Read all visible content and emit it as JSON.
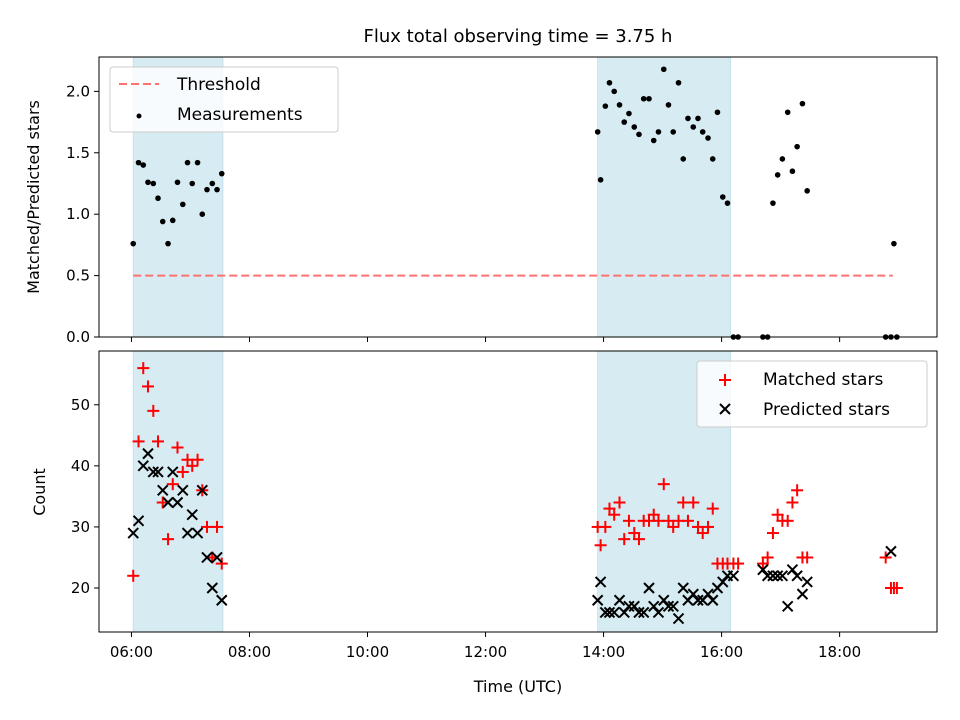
{
  "chart_data": [
    {
      "type": "scatter",
      "title": "Flux total observing time = 3.75 h",
      "xlabel": "",
      "ylabel": "Matched/Predicted stars",
      "xlim": [
        5.45,
        19.65
      ],
      "ylim": [
        0,
        2.28
      ],
      "yticks": [
        0.0,
        0.5,
        1.0,
        1.5,
        2.0
      ],
      "ytick_labels": [
        "0.0",
        "0.5",
        "1.0",
        "1.5",
        "2.0"
      ],
      "legend_position": "top-left",
      "shaded_intervals": [
        [
          6.03,
          7.55
        ],
        [
          13.9,
          16.15
        ]
      ],
      "series": [
        {
          "name": "Threshold",
          "kind": "dashed-line",
          "color": "#ff7070",
          "x": [
            6.03,
            18.9
          ],
          "y": [
            0.5,
            0.5
          ]
        },
        {
          "name": "Measurements",
          "kind": "points",
          "color": "#000000",
          "x": [
            6.03,
            6.12,
            6.2,
            6.28,
            6.37,
            6.45,
            6.53,
            6.62,
            6.7,
            6.78,
            6.87,
            6.95,
            7.03,
            7.12,
            7.2,
            7.28,
            7.37,
            7.45,
            7.53,
            13.9,
            13.95,
            14.03,
            14.1,
            14.18,
            14.27,
            14.35,
            14.43,
            14.52,
            14.6,
            14.68,
            14.77,
            14.85,
            14.93,
            15.02,
            15.1,
            15.18,
            15.27,
            15.35,
            15.43,
            15.52,
            15.6,
            15.68,
            15.77,
            15.85,
            15.93,
            16.02,
            16.1,
            16.2,
            16.28,
            16.7,
            16.78,
            16.87,
            16.95,
            17.03,
            17.12,
            17.2,
            17.28,
            17.37,
            17.45,
            18.78,
            18.87,
            18.92,
            18.97
          ],
          "y": [
            0.76,
            1.42,
            1.4,
            1.26,
            1.25,
            1.13,
            0.94,
            0.76,
            0.95,
            1.26,
            1.08,
            1.42,
            1.25,
            1.42,
            1.0,
            1.2,
            1.25,
            1.2,
            1.33,
            1.67,
            1.28,
            1.88,
            2.07,
            2.0,
            1.89,
            1.75,
            1.82,
            1.71,
            1.65,
            1.94,
            1.94,
            1.6,
            1.67,
            2.18,
            1.89,
            1.67,
            2.07,
            1.45,
            1.78,
            1.71,
            1.78,
            1.67,
            1.62,
            1.45,
            1.83,
            1.14,
            1.09,
            0.0,
            0.0,
            0.0,
            0.0,
            1.09,
            1.32,
            1.45,
            1.83,
            1.35,
            1.55,
            1.9,
            1.19,
            0.0,
            0.0,
            0.76,
            0.0
          ]
        }
      ]
    },
    {
      "type": "scatter",
      "title": "",
      "xlabel": "Time (UTC)",
      "ylabel": "Count",
      "xlim": [
        5.45,
        19.65
      ],
      "ylim": [
        12.8,
        58.8
      ],
      "xticks": [
        6,
        8,
        10,
        12,
        14,
        16,
        18
      ],
      "xtick_labels": [
        "06:00",
        "08:00",
        "10:00",
        "12:00",
        "14:00",
        "16:00",
        "18:00"
      ],
      "yticks": [
        20,
        30,
        40,
        50
      ],
      "ytick_labels": [
        "20",
        "30",
        "40",
        "50"
      ],
      "legend_position": "top-right",
      "shaded_intervals": [
        [
          6.03,
          7.55
        ],
        [
          13.9,
          16.15
        ]
      ],
      "series": [
        {
          "name": "Matched stars",
          "marker": "+",
          "color": "#ff0000",
          "x": [
            6.03,
            6.12,
            6.2,
            6.28,
            6.37,
            6.45,
            6.53,
            6.62,
            6.7,
            6.78,
            6.87,
            6.95,
            7.03,
            7.12,
            7.2,
            7.28,
            7.37,
            7.45,
            7.53,
            13.9,
            13.95,
            14.03,
            14.1,
            14.18,
            14.27,
            14.35,
            14.43,
            14.52,
            14.6,
            14.68,
            14.77,
            14.85,
            14.93,
            15.02,
            15.1,
            15.18,
            15.27,
            15.35,
            15.43,
            15.52,
            15.6,
            15.68,
            15.77,
            15.85,
            15.93,
            16.02,
            16.1,
            16.2,
            16.28,
            16.7,
            16.78,
            16.87,
            16.95,
            17.03,
            17.12,
            17.2,
            17.28,
            17.37,
            17.45,
            18.78,
            18.87,
            18.92,
            18.97
          ],
          "y": [
            22,
            44,
            56,
            53,
            49,
            44,
            34,
            28,
            37,
            43,
            39,
            41,
            40,
            41,
            36,
            30,
            25,
            30,
            24,
            30,
            27,
            30,
            33,
            32,
            34,
            28,
            31,
            29,
            28,
            31,
            31,
            32,
            31,
            37,
            31,
            30,
            31,
            34,
            31,
            34,
            30,
            29,
            30,
            33,
            24,
            24,
            24,
            24,
            24,
            24,
            25,
            29,
            32,
            31,
            31,
            34,
            36,
            25,
            25,
            25,
            20,
            20,
            20
          ],
          "comment": ""
        },
        {
          "name": "Predicted stars",
          "marker": "x",
          "color": "#000000",
          "x": [
            6.03,
            6.12,
            6.2,
            6.28,
            6.37,
            6.45,
            6.53,
            6.62,
            6.7,
            6.78,
            6.87,
            6.95,
            7.03,
            7.12,
            7.2,
            7.28,
            7.37,
            7.45,
            7.53,
            13.9,
            13.95,
            14.03,
            14.1,
            14.18,
            14.27,
            14.35,
            14.43,
            14.52,
            14.6,
            14.68,
            14.77,
            14.85,
            14.93,
            15.02,
            15.1,
            15.18,
            15.27,
            15.35,
            15.43,
            15.52,
            15.6,
            15.68,
            15.77,
            15.85,
            15.93,
            16.02,
            16.1,
            16.2,
            16.7,
            16.78,
            16.87,
            16.95,
            17.03,
            17.12,
            17.2,
            17.28,
            17.37,
            17.45,
            18.87
          ],
          "y": [
            29,
            31,
            40,
            42,
            39,
            39,
            36,
            34,
            39,
            34,
            36,
            29,
            32,
            29,
            36,
            25,
            20,
            25,
            18,
            18,
            21,
            16,
            16,
            16,
            18,
            16,
            17,
            17,
            16,
            16,
            20,
            17,
            16,
            18,
            17,
            17,
            15,
            20,
            18,
            19,
            18,
            18,
            19,
            18,
            20,
            21,
            22,
            22,
            23,
            22,
            22,
            22,
            22,
            17,
            23,
            22,
            19,
            21,
            26
          ]
        }
      ]
    }
  ]
}
